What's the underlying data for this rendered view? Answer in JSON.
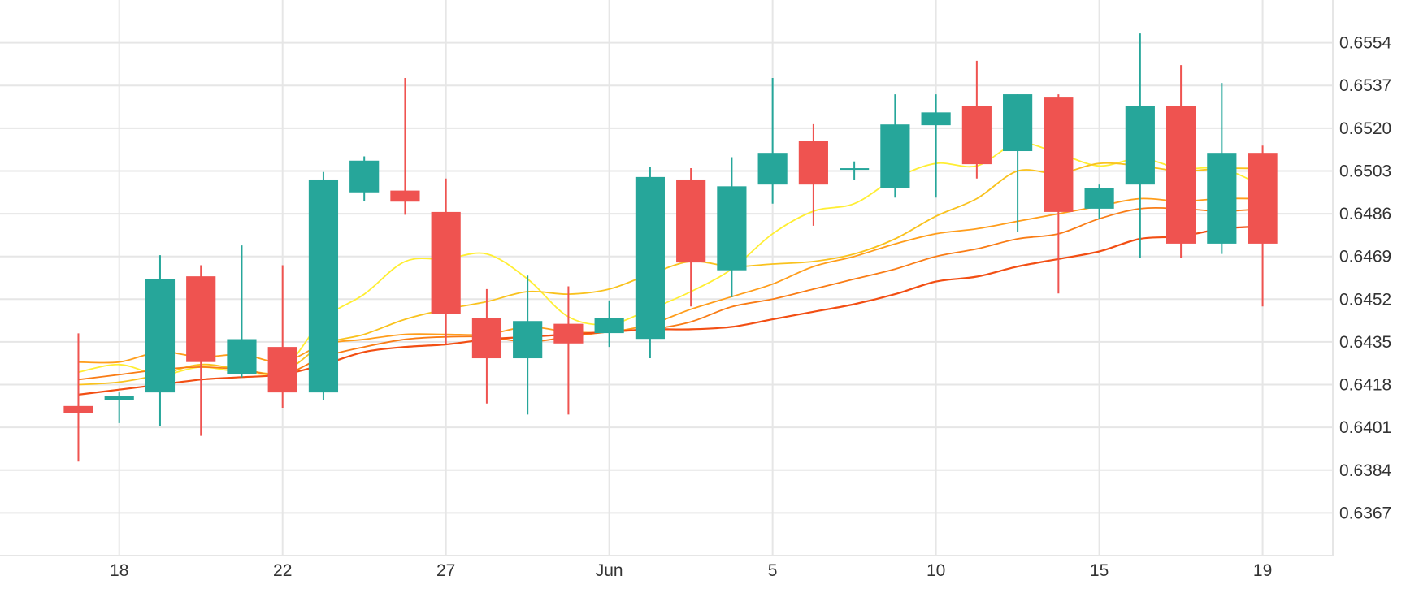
{
  "chart_data": {
    "type": "candlestick",
    "title": "",
    "xlabel": "",
    "ylabel": "",
    "ylim": [
      0.635,
      0.6571
    ],
    "y_ticks": [
      "0.6367",
      "0.6384",
      "0.6401",
      "0.6418",
      "0.6435",
      "0.6452",
      "0.6469",
      "0.6486",
      "0.6503",
      "0.6520",
      "0.6537",
      "0.6554"
    ],
    "x_ticks": [
      {
        "label": "18",
        "index": 1
      },
      {
        "label": "22",
        "index": 5
      },
      {
        "label": "27",
        "index": 9
      },
      {
        "label": "Jun",
        "index": 13
      },
      {
        "label": "5",
        "index": 17
      },
      {
        "label": "10",
        "index": 21
      },
      {
        "label": "15",
        "index": 25
      },
      {
        "label": "19",
        "index": 29
      }
    ],
    "x_domain": [
      -1.92,
      30.72
    ],
    "colors": {
      "up": "#26a69a",
      "down": "#ef5350",
      "grid": "#e6e6e6"
    },
    "candles": [
      {
        "o": 0.64095,
        "h": 0.64384,
        "l": 0.63874,
        "c": 0.64068
      },
      {
        "o": 0.64119,
        "h": 0.64149,
        "l": 0.64027,
        "c": 0.64135
      },
      {
        "o": 0.64149,
        "h": 0.64695,
        "l": 0.64016,
        "c": 0.64601
      },
      {
        "o": 0.64611,
        "h": 0.64655,
        "l": 0.63976,
        "c": 0.6427
      },
      {
        "o": 0.64223,
        "h": 0.64734,
        "l": 0.64209,
        "c": 0.64361
      },
      {
        "o": 0.6433,
        "h": 0.64655,
        "l": 0.64088,
        "c": 0.64149
      },
      {
        "o": 0.64149,
        "h": 0.65026,
        "l": 0.64119,
        "c": 0.64996
      },
      {
        "o": 0.64945,
        "h": 0.65088,
        "l": 0.64911,
        "c": 0.65071
      },
      {
        "o": 0.64952,
        "h": 0.654,
        "l": 0.64856,
        "c": 0.64908
      },
      {
        "o": 0.64867,
        "h": 0.65,
        "l": 0.6434,
        "c": 0.6446
      },
      {
        "o": 0.64446,
        "h": 0.6456,
        "l": 0.64105,
        "c": 0.64285
      },
      {
        "o": 0.64285,
        "h": 0.64614,
        "l": 0.64061,
        "c": 0.64433
      },
      {
        "o": 0.64422,
        "h": 0.64571,
        "l": 0.64061,
        "c": 0.64344
      },
      {
        "o": 0.64385,
        "h": 0.64515,
        "l": 0.6433,
        "c": 0.64446
      },
      {
        "o": 0.64362,
        "h": 0.65045,
        "l": 0.64285,
        "c": 0.65006
      },
      {
        "o": 0.64996,
        "h": 0.65041,
        "l": 0.64491,
        "c": 0.64666
      },
      {
        "o": 0.64635,
        "h": 0.65085,
        "l": 0.64528,
        "c": 0.64969
      },
      {
        "o": 0.64976,
        "h": 0.654,
        "l": 0.649,
        "c": 0.65102
      },
      {
        "o": 0.6515,
        "h": 0.65216,
        "l": 0.64812,
        "c": 0.64976
      },
      {
        "o": 0.65041,
        "h": 0.65068,
        "l": 0.64996,
        "c": 0.65041
      },
      {
        "o": 0.64962,
        "h": 0.65335,
        "l": 0.64924,
        "c": 0.65215
      },
      {
        "o": 0.65212,
        "h": 0.65335,
        "l": 0.64924,
        "c": 0.65263
      },
      {
        "o": 0.65287,
        "h": 0.65468,
        "l": 0.65,
        "c": 0.65057
      },
      {
        "o": 0.65109,
        "h": 0.65335,
        "l": 0.64788,
        "c": 0.65335
      },
      {
        "o": 0.65322,
        "h": 0.65335,
        "l": 0.64543,
        "c": 0.64867
      },
      {
        "o": 0.6488,
        "h": 0.64976,
        "l": 0.64839,
        "c": 0.64962
      },
      {
        "o": 0.64976,
        "h": 0.65577,
        "l": 0.64683,
        "c": 0.65287
      },
      {
        "o": 0.65287,
        "h": 0.65451,
        "l": 0.64683,
        "c": 0.64741
      },
      {
        "o": 0.64741,
        "h": 0.6538,
        "l": 0.647,
        "c": 0.65102
      },
      {
        "o": 0.65102,
        "h": 0.65131,
        "l": 0.64491,
        "c": 0.64741
      }
    ],
    "series": [
      {
        "color": "#ffee33",
        "width": 1.8,
        "values": [
          0.6423,
          0.6426,
          0.6422,
          0.6425,
          0.6423,
          0.6424,
          0.6444,
          0.6454,
          0.6467,
          0.6468,
          0.647,
          0.646,
          0.6445,
          0.6442,
          0.6448,
          0.6455,
          0.6464,
          0.6478,
          0.6487,
          0.649,
          0.65,
          0.6506,
          0.6505,
          0.6514,
          0.651,
          0.6505,
          0.6508,
          0.6504,
          0.6504,
          0.6497
        ]
      },
      {
        "color": "#f9c21e",
        "width": 1.8,
        "values": [
          0.6418,
          0.6419,
          0.6422,
          0.6426,
          0.6424,
          0.6423,
          0.6434,
          0.6438,
          0.6444,
          0.6448,
          0.6451,
          0.6455,
          0.6454,
          0.6456,
          0.6462,
          0.6467,
          0.6465,
          0.6466,
          0.6467,
          0.647,
          0.6476,
          0.6485,
          0.6492,
          0.6503,
          0.6502,
          0.6506,
          0.6505,
          0.6503,
          0.6504,
          0.6504
        ]
      },
      {
        "color": "#ff9d1b",
        "width": 1.8,
        "values": [
          0.6427,
          0.6427,
          0.6431,
          0.6429,
          0.643,
          0.6427,
          0.6434,
          0.6436,
          0.6438,
          0.6438,
          0.6438,
          0.6441,
          0.6439,
          0.6439,
          0.6442,
          0.6448,
          0.6453,
          0.6458,
          0.6465,
          0.6469,
          0.6474,
          0.6478,
          0.648,
          0.6483,
          0.6486,
          0.6489,
          0.6492,
          0.6491,
          0.6492,
          0.6492
        ]
      },
      {
        "color": "#f97c16",
        "width": 1.8,
        "values": [
          0.642,
          0.6422,
          0.6424,
          0.6425,
          0.6424,
          0.6422,
          0.6429,
          0.6433,
          0.6436,
          0.6437,
          0.6437,
          0.6435,
          0.6437,
          0.6439,
          0.644,
          0.6443,
          0.6449,
          0.6452,
          0.6456,
          0.646,
          0.6464,
          0.6469,
          0.6472,
          0.6476,
          0.6478,
          0.6484,
          0.6488,
          0.6488,
          0.6487,
          0.6488
        ]
      },
      {
        "color": "#f24e13",
        "width": 2.2,
        "values": [
          0.6414,
          0.6416,
          0.6418,
          0.642,
          0.6421,
          0.6422,
          0.6426,
          0.6431,
          0.6433,
          0.6434,
          0.6436,
          0.6437,
          0.6438,
          0.6439,
          0.644,
          0.644,
          0.6441,
          0.6444,
          0.6447,
          0.645,
          0.6454,
          0.6459,
          0.6461,
          0.6465,
          0.6468,
          0.6471,
          0.6476,
          0.6477,
          0.648,
          0.6481
        ]
      }
    ]
  }
}
